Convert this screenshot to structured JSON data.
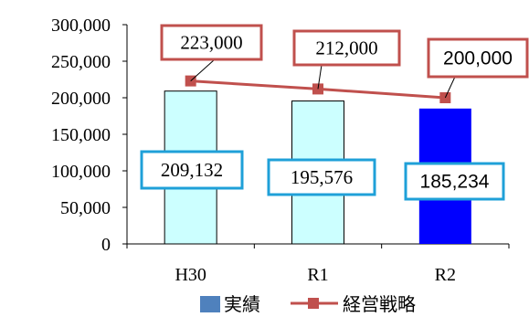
{
  "chart_data": {
    "type": "bar",
    "categories": [
      "H30",
      "R1",
      "R2"
    ],
    "series": [
      {
        "name": "実績",
        "kind": "bar",
        "values": [
          209132,
          195576,
          185234
        ],
        "value_labels": [
          "209,132",
          "195,576",
          "185,234"
        ],
        "colors": [
          "#CCFFFF",
          "#CCFFFF",
          "#0000FF"
        ],
        "border_color": "#000000",
        "label_border_color": "#1FA0D8",
        "legend_color": "#4F81BD"
      },
      {
        "name": "経営戦略",
        "kind": "line",
        "values": [
          223000,
          212000,
          200000
        ],
        "value_labels": [
          "223,000",
          "212,000",
          "200,000"
        ],
        "color": "#C0504D",
        "label_border_color": "#C0504D"
      }
    ],
    "y_ticks": [
      "0",
      "50,000",
      "100,000",
      "150,000",
      "200,000",
      "250,000",
      "300,000"
    ],
    "y_tick_values": [
      0,
      50000,
      100000,
      150000,
      200000,
      250000,
      300000
    ],
    "ylim": [
      0,
      300000
    ],
    "grid": false,
    "legend_position": "bottom"
  }
}
